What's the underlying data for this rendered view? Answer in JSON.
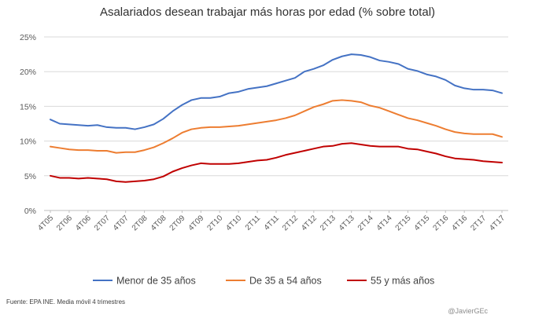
{
  "chart_data": {
    "type": "line",
    "title": "Asalariados desean trabajar más horas por edad (% sobre total)",
    "categories": [
      "4T05",
      "1T06",
      "2T06",
      "3T06",
      "4T06",
      "1T07",
      "2T07",
      "3T07",
      "4T07",
      "1T08",
      "2T08",
      "3T08",
      "4T08",
      "1T09",
      "2T09",
      "3T09",
      "4T09",
      "1T10",
      "2T10",
      "3T10",
      "4T10",
      "1T11",
      "2T11",
      "3T11",
      "4T11",
      "1T12",
      "2T12",
      "3T12",
      "4T12",
      "1T13",
      "2T13",
      "3T13",
      "4T13",
      "1T14",
      "2T14",
      "3T14",
      "4T14",
      "1T15",
      "2T15",
      "3T15",
      "4T15",
      "1T16",
      "2T16",
      "3T16",
      "4T16",
      "1T17",
      "2T17",
      "3T17",
      "4T17"
    ],
    "x_tick_labels": [
      "4T05",
      "2T06",
      "4T06",
      "2T07",
      "4T07",
      "2T08",
      "4T08",
      "2T09",
      "4T09",
      "2T10",
      "4T10",
      "2T11",
      "4T11",
      "2T12",
      "4T12",
      "2T13",
      "4T13",
      "2T14",
      "4T14",
      "2T15",
      "4T15",
      "2T16",
      "4T16",
      "2T17",
      "4T17"
    ],
    "ylim": [
      0,
      25
    ],
    "y_ticks": [
      0,
      5,
      10,
      15,
      20,
      25
    ],
    "y_tick_labels": [
      "0%",
      "5%",
      "10%",
      "15%",
      "20%",
      "25%"
    ],
    "legend_position": "bottom",
    "series": [
      {
        "name": "Menor de 35 años",
        "color": "#4472C4",
        "values": [
          13.1,
          12.5,
          12.4,
          12.3,
          12.2,
          12.3,
          12.0,
          11.9,
          11.9,
          11.7,
          12.0,
          12.4,
          13.2,
          14.3,
          15.2,
          15.9,
          16.2,
          16.2,
          16.4,
          16.9,
          17.1,
          17.5,
          17.7,
          17.9,
          18.3,
          18.7,
          19.1,
          20.0,
          20.4,
          20.9,
          21.7,
          22.2,
          22.5,
          22.4,
          22.1,
          21.6,
          21.4,
          21.1,
          20.4,
          20.1,
          19.6,
          19.3,
          18.8,
          18.0,
          17.6,
          17.4,
          17.4,
          17.3,
          16.9
        ]
      },
      {
        "name": "De 35 a 54 años",
        "color": "#ED7D31",
        "values": [
          9.2,
          9.0,
          8.8,
          8.7,
          8.7,
          8.6,
          8.6,
          8.3,
          8.4,
          8.4,
          8.7,
          9.1,
          9.7,
          10.4,
          11.2,
          11.7,
          11.9,
          12.0,
          12.0,
          12.1,
          12.2,
          12.4,
          12.6,
          12.8,
          13.0,
          13.3,
          13.7,
          14.3,
          14.9,
          15.3,
          15.8,
          15.9,
          15.8,
          15.6,
          15.1,
          14.8,
          14.3,
          13.8,
          13.3,
          13.0,
          12.6,
          12.2,
          11.7,
          11.3,
          11.1,
          11.0,
          11.0,
          11.0,
          10.6
        ]
      },
      {
        "name": "55 y más años",
        "color": "#C00000",
        "values": [
          5.0,
          4.7,
          4.7,
          4.6,
          4.7,
          4.6,
          4.5,
          4.2,
          4.1,
          4.2,
          4.3,
          4.5,
          4.9,
          5.6,
          6.1,
          6.5,
          6.8,
          6.7,
          6.7,
          6.7,
          6.8,
          7.0,
          7.2,
          7.3,
          7.6,
          8.0,
          8.3,
          8.6,
          8.9,
          9.2,
          9.3,
          9.6,
          9.7,
          9.5,
          9.3,
          9.2,
          9.2,
          9.2,
          8.9,
          8.8,
          8.5,
          8.2,
          7.8,
          7.5,
          7.4,
          7.3,
          7.1,
          7.0,
          6.9
        ]
      }
    ]
  },
  "source_note": "Fuente:  EPA INE. Media móvil 4 trimestres",
  "credit": "@JavierGEc"
}
